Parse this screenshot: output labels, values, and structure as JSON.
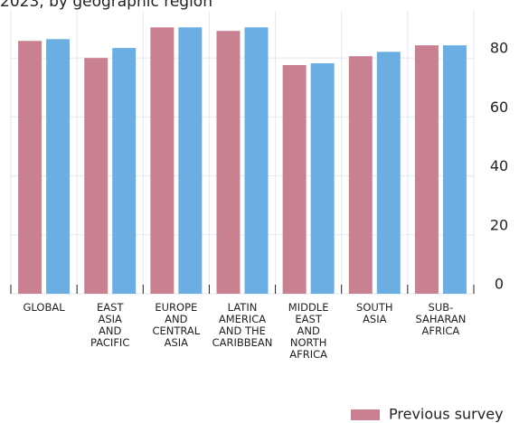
{
  "chart_data": {
    "type": "bar",
    "title": "2023, by geographic region",
    "categories": [
      "GLOBAL",
      "EAST\nASIA\nAND\nPACIFIC",
      "EUROPE\nAND\nCENTRAL\nASIA",
      "LATIN\nAMERICA\nAND THE\nCARIBBEAN",
      "MIDDLE\nEAST\nAND\nNORTH\nAFRICA",
      "SOUTH\nASIA",
      "SUB-\nSAHARAN\nAFRICA"
    ],
    "series": [
      {
        "name": "Previous survey",
        "color": "#c98090",
        "values": [
          85.8,
          80,
          90.4,
          89.2,
          77.6,
          80.6,
          84.3
        ]
      },
      {
        "color": "#6aaee4",
        "values": [
          86.4,
          83.4,
          90.4,
          90.4,
          78.2,
          82.1,
          84.3
        ]
      }
    ],
    "ylim": [
      0,
      96
    ],
    "yticks": [
      0,
      20,
      40,
      60,
      80
    ],
    "grid": true,
    "y_axis_side": "right",
    "legend": "bottom-right"
  }
}
